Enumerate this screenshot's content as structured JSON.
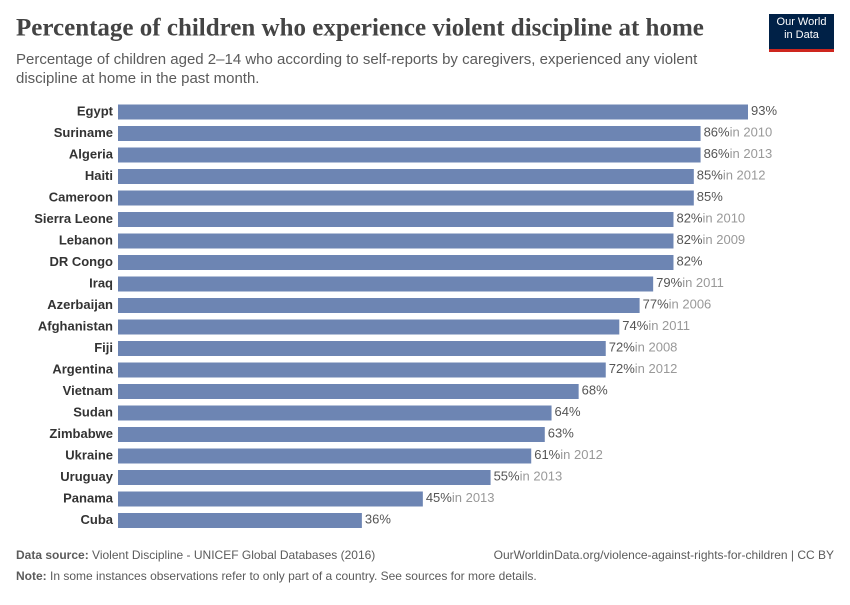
{
  "chart_data": {
    "type": "bar",
    "orientation": "horizontal",
    "title": "Percentage of children who experience violent discipline at home",
    "subtitle": "Percentage of children aged 2–14 who according to self-reports by caregivers, experienced any violent discipline at home in the past month.",
    "logo": "Our World in Data",
    "categories": [
      "Egypt",
      "Suriname",
      "Algeria",
      "Haiti",
      "Cameroon",
      "Sierra Leone",
      "Lebanon",
      "DR Congo",
      "Iraq",
      "Azerbaijan",
      "Afghanistan",
      "Fiji",
      "Argentina",
      "Vietnam",
      "Sudan",
      "Zimbabwe",
      "Ukraine",
      "Uruguay",
      "Panama",
      "Cuba"
    ],
    "values": [
      93,
      86,
      86,
      85,
      85,
      82,
      82,
      82,
      79,
      77,
      74,
      72,
      72,
      68,
      64,
      63,
      61,
      55,
      45,
      36
    ],
    "value_labels": [
      "93%",
      "86%",
      "86%",
      "85%",
      "85%",
      "82%",
      "82%",
      "82%",
      "79%",
      "77%",
      "74%",
      "72%",
      "72%",
      "68%",
      "64%",
      "63%",
      "61%",
      "55%",
      "45%",
      "36%"
    ],
    "year_notes": [
      null,
      "in 2010",
      "in 2013",
      "in 2012",
      null,
      "in 2010",
      "in 2009",
      null,
      "in 2011",
      "in 2006",
      "in 2011",
      "in 2008",
      "in 2012",
      null,
      null,
      null,
      "in 2012",
      "in 2013",
      "in 2013",
      null
    ],
    "color": "#6d85b3",
    "source_label": "Data source:",
    "source": "Violent Discipline - UNICEF Global Databases (2016)",
    "url": "OurWorldinData.org/violence-against-rights-for-children | CC BY",
    "note_label": "Note:",
    "note": "In some instances observations refer to only part of a country. See sources for more details."
  }
}
